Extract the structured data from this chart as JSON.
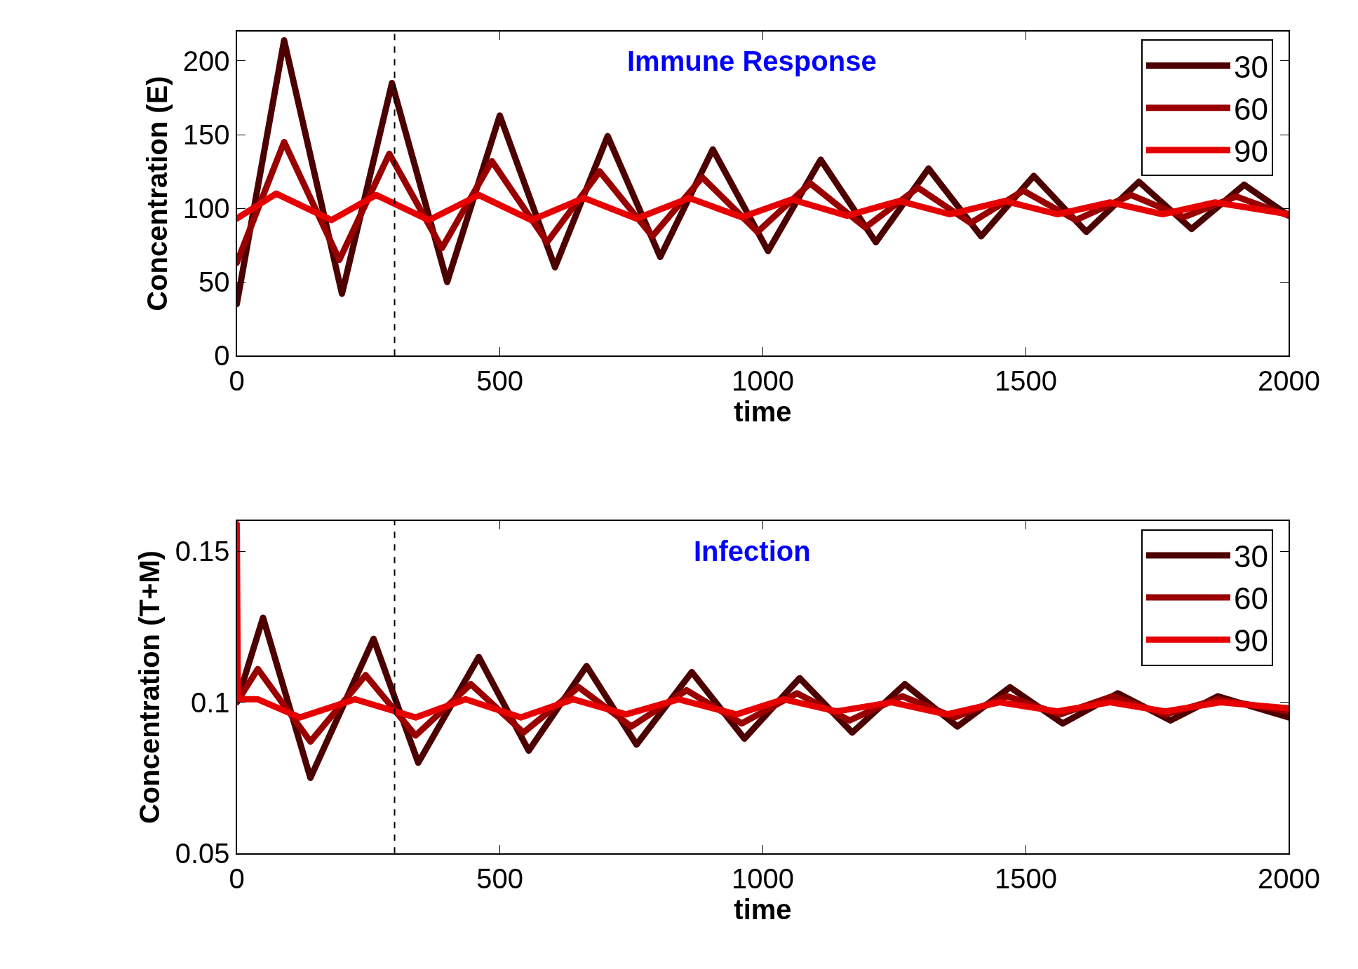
{
  "chart_data": [
    {
      "type": "line",
      "title": "Immune Response",
      "xlabel": "time",
      "ylabel": "Concentration (E)",
      "xlim": [
        0,
        2000
      ],
      "xticks": [
        0,
        500,
        1000,
        1500,
        2000
      ],
      "ylim": [
        0,
        220
      ],
      "yticks": [
        0,
        50,
        100,
        150,
        200
      ],
      "legend": "top right",
      "line_style": "solid",
      "ref_lines": [
        {
          "axis": "x",
          "value": 300,
          "color": "#000000",
          "line_style": "dashed"
        }
      ],
      "series": [
        {
          "name": "30",
          "color": "#4d0000",
          "x": [
            0,
            90,
            200,
            295,
            400,
            500,
            605,
            705,
            805,
            905,
            1010,
            1110,
            1215,
            1315,
            1415,
            1515,
            1615,
            1715,
            1815,
            1915,
            2000
          ],
          "values": [
            35,
            214,
            42,
            185,
            50,
            163,
            60,
            149,
            67,
            140,
            71,
            133,
            77,
            127,
            81,
            122,
            84,
            118,
            86,
            116,
            95
          ]
        },
        {
          "name": "60",
          "color": "#990000",
          "x": [
            0,
            90,
            195,
            290,
            390,
            485,
            590,
            690,
            790,
            885,
            990,
            1090,
            1195,
            1295,
            1395,
            1495,
            1595,
            1700,
            1800,
            1900,
            2000
          ],
          "values": [
            63,
            145,
            65,
            137,
            73,
            132,
            77,
            125,
            81,
            121,
            84,
            117,
            87,
            114,
            90,
            112,
            92,
            109,
            94,
            108,
            95
          ]
        },
        {
          "name": "90",
          "color": "#e60000",
          "x": [
            0,
            75,
            180,
            265,
            365,
            460,
            560,
            660,
            760,
            860,
            960,
            1055,
            1160,
            1260,
            1355,
            1460,
            1560,
            1660,
            1760,
            1860,
            2000
          ],
          "values": [
            93,
            110,
            92,
            109,
            92,
            109,
            92,
            107,
            93,
            107,
            94,
            106,
            95,
            105,
            96,
            105,
            96,
            104,
            96,
            104,
            96
          ]
        }
      ]
    },
    {
      "type": "line",
      "title": "Infection",
      "xlabel": "time",
      "ylabel": "Concentration (T+M)",
      "xlim": [
        0,
        2000
      ],
      "xticks": [
        0,
        500,
        1000,
        1500,
        2000
      ],
      "ylim": [
        0.05,
        0.16
      ],
      "yticks": [
        0.05,
        0.1,
        0.15
      ],
      "legend": "top right",
      "line_style": "solid",
      "ref_lines": [
        {
          "axis": "x",
          "value": 300,
          "color": "#000000",
          "line_style": "dashed"
        }
      ],
      "series": [
        {
          "name": "30",
          "color": "#4d0000",
          "x": [
            0,
            50,
            140,
            260,
            345,
            460,
            555,
            665,
            760,
            865,
            965,
            1070,
            1170,
            1270,
            1370,
            1470,
            1570,
            1675,
            1775,
            1865,
            2000
          ],
          "values": [
            0.1,
            0.128,
            0.075,
            0.121,
            0.08,
            0.115,
            0.084,
            0.112,
            0.086,
            0.11,
            0.088,
            0.108,
            0.09,
            0.106,
            0.092,
            0.105,
            0.093,
            0.103,
            0.094,
            0.102,
            0.095
          ]
        },
        {
          "name": "60",
          "color": "#990000",
          "x": [
            0,
            40,
            140,
            245,
            340,
            445,
            545,
            650,
            750,
            855,
            960,
            1065,
            1165,
            1265,
            1365,
            1465,
            1565,
            1665,
            1765,
            1865,
            2000
          ],
          "values": [
            0.1,
            0.111,
            0.087,
            0.109,
            0.089,
            0.106,
            0.09,
            0.105,
            0.092,
            0.104,
            0.093,
            0.103,
            0.094,
            0.102,
            0.095,
            0.102,
            0.096,
            0.102,
            0.096,
            0.101,
            0.097
          ]
        },
        {
          "name": "90",
          "color": "#e60000",
          "x": [
            0,
            2,
            40,
            120,
            225,
            340,
            435,
            540,
            640,
            740,
            840,
            950,
            1040,
            1140,
            1245,
            1350,
            1450,
            1560,
            1660,
            1765,
            1870,
            2000
          ],
          "values": [
            0.159,
            0.101,
            0.101,
            0.095,
            0.101,
            0.095,
            0.101,
            0.095,
            0.101,
            0.096,
            0.101,
            0.096,
            0.101,
            0.097,
            0.1,
            0.096,
            0.1,
            0.097,
            0.1,
            0.097,
            0.1,
            0.098
          ]
        }
      ]
    }
  ]
}
